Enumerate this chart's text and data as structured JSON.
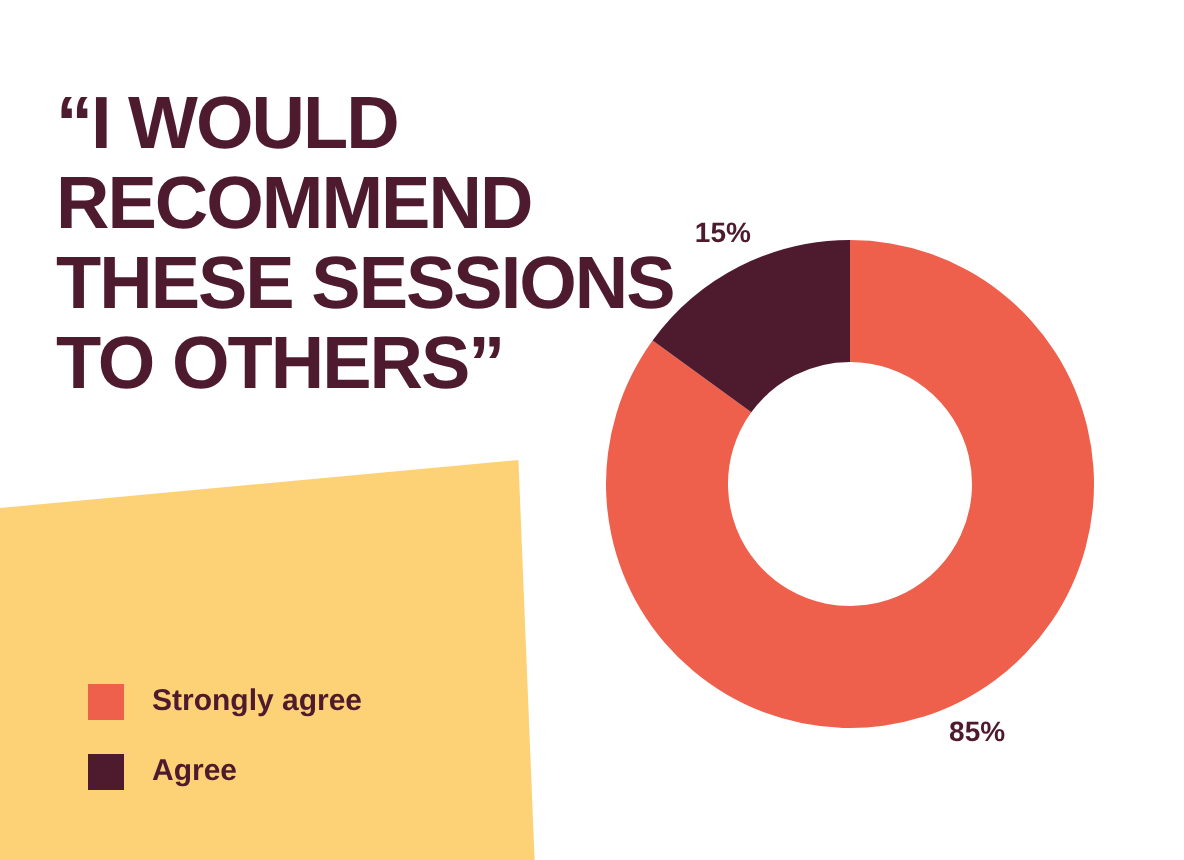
{
  "chart_data": {
    "type": "donut",
    "title": "“I WOULD RECOMMEND THESE SESSIONS TO OTHERS”",
    "categories": [
      "Strongly agree",
      "Agree"
    ],
    "values": [
      85,
      15
    ],
    "value_labels": [
      "85%",
      "15%"
    ],
    "colors": [
      "#ee604b",
      "#4e1a2e"
    ],
    "legend": "left"
  }
}
